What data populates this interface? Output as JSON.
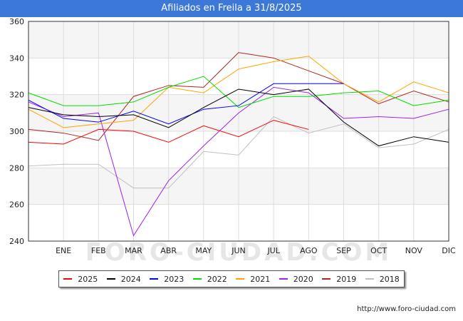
{
  "header": {
    "title": "Afiliados en Freila a 31/8/2025"
  },
  "footer": {
    "source": "http://www.foro-ciudad.com",
    "watermark": "FORO-CIUDAD.COM"
  },
  "chart_data": {
    "type": "line",
    "title": "Afiliados en Freila a 31/8/2025",
    "xlabel": "",
    "ylabel": "",
    "categories": [
      "",
      "ENE",
      "FEB",
      "MAR",
      "ABR",
      "MAY",
      "JUN",
      "JUL",
      "AGO",
      "SEP",
      "OCT",
      "NOV",
      "DIC"
    ],
    "y_ticks": [
      240,
      260,
      280,
      300,
      320,
      340,
      360
    ],
    "ylim": [
      240,
      360
    ],
    "grid": true,
    "legend_position": "bottom",
    "series": [
      {
        "name": "2025",
        "color": "#ff0000",
        "values": [
          294,
          293,
          301,
          300,
          294,
          303,
          297,
          306,
          301,
          null,
          null,
          null,
          null
        ]
      },
      {
        "name": "2024",
        "color": "#000000",
        "values": [
          313,
          309,
          308,
          309,
          302,
          313,
          323,
          320,
          323,
          305,
          292,
          297,
          294
        ]
      },
      {
        "name": "2023",
        "color": "#0000ff",
        "values": [
          317,
          307,
          305,
          311,
          304,
          312,
          314,
          326,
          326,
          326,
          null,
          null,
          null
        ]
      },
      {
        "name": "2022",
        "color": "#00dd00",
        "values": [
          321,
          314,
          314,
          316,
          324,
          330,
          313,
          319,
          319,
          321,
          322,
          314,
          317
        ]
      },
      {
        "name": "2021",
        "color": "#ffa500",
        "values": [
          312,
          302,
          304,
          306,
          324,
          321,
          334,
          338,
          341,
          326,
          316,
          327,
          321
        ]
      },
      {
        "name": "2020",
        "color": "#a020f0",
        "values": [
          316,
          308,
          310,
          243,
          273,
          292,
          310,
          324,
          321,
          307,
          308,
          307,
          312
        ]
      },
      {
        "name": "2019",
        "color": "#b22222",
        "values": [
          301,
          299,
          295,
          319,
          325,
          324,
          343,
          340,
          333,
          326,
          315,
          322,
          316
        ]
      },
      {
        "name": "2018",
        "color": "#c0c0c0",
        "values": [
          281,
          282,
          282,
          269,
          269,
          289,
          287,
          308,
          299,
          304,
          291,
          293,
          301
        ]
      }
    ]
  }
}
